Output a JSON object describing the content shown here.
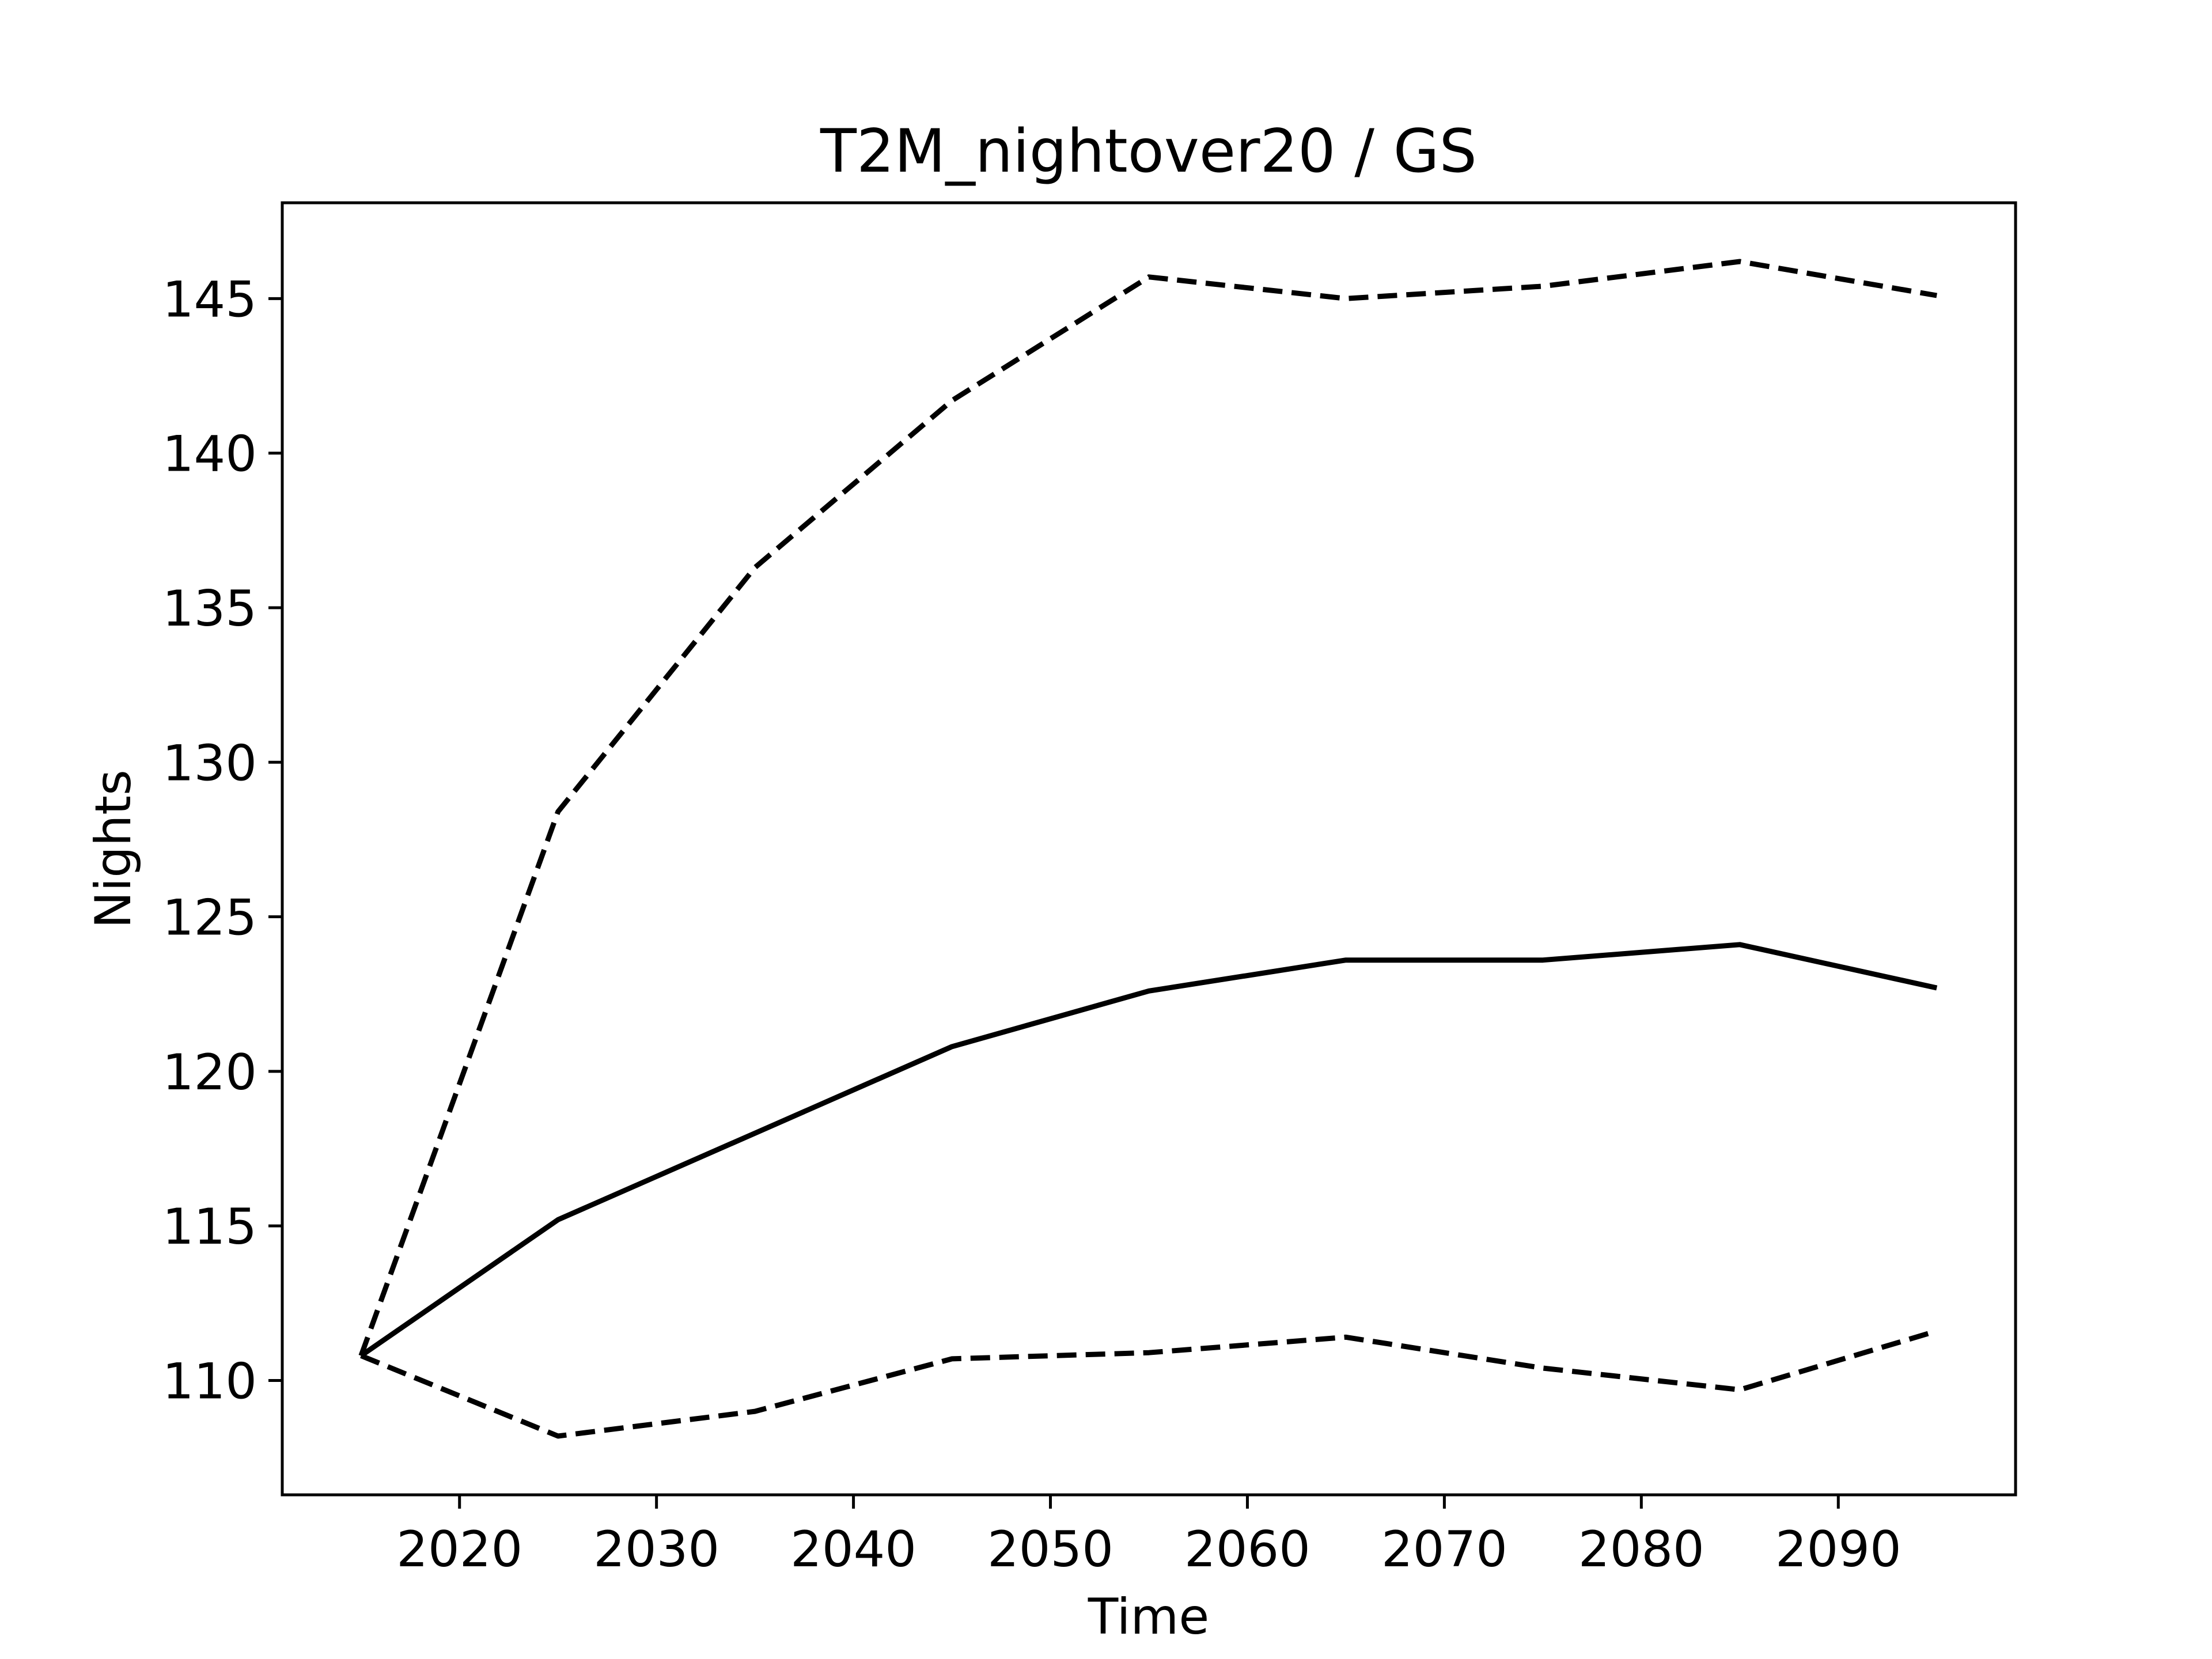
{
  "chart_data": {
    "type": "line",
    "title": "T2M_nightover20 / GS",
    "xlabel": "Time",
    "ylabel": "Nights",
    "xlim": [
      2011,
      2099
    ],
    "ylim": [
      106.3,
      148.1
    ],
    "x_ticks": [
      2020,
      2030,
      2040,
      2050,
      2060,
      2070,
      2080,
      2090
    ],
    "y_ticks": [
      110,
      115,
      120,
      125,
      130,
      135,
      140,
      145
    ],
    "x": [
      2015,
      2025,
      2035,
      2045,
      2055,
      2065,
      2075,
      2085,
      2095
    ],
    "series": [
      {
        "line_style": "dashed",
        "color": "#000000",
        "values": [
          110.8,
          128.4,
          136.3,
          141.7,
          145.7,
          145.0,
          145.4,
          146.2,
          145.1
        ]
      },
      {
        "line_style": "solid",
        "color": "#000000",
        "values": [
          110.8,
          115.2,
          118.0,
          120.8,
          122.6,
          123.6,
          123.6,
          124.1,
          122.7
        ]
      },
      {
        "line_style": "dashed",
        "color": "#000000",
        "values": [
          110.8,
          108.2,
          109.0,
          110.7,
          110.9,
          111.4,
          110.4,
          109.7,
          111.6
        ]
      }
    ],
    "grid": false,
    "legend": false
  }
}
